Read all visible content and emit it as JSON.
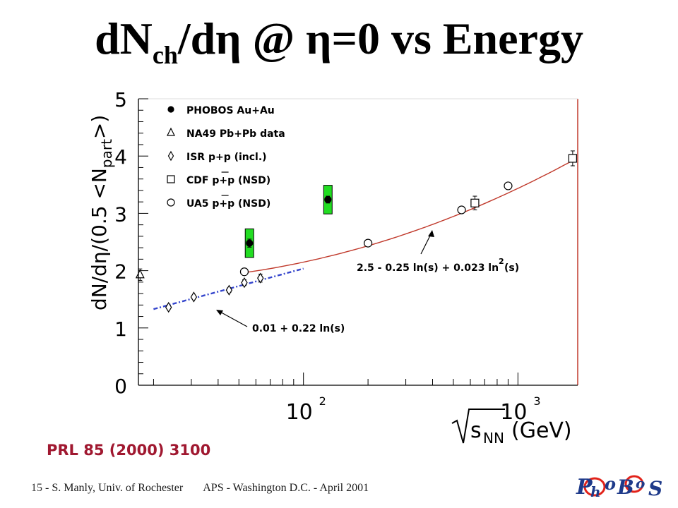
{
  "slide": {
    "title_main": "dN",
    "title_sub": "ch",
    "title_rest": "/dη @ η=0 vs Energy",
    "reference": "PRL 85 (2000) 3100",
    "footer_num": "15",
    "footer_author": " - S. Manly, Univ. of Rochester",
    "footer_conf": "APS - Washington D.C. - April 2001",
    "logo_text": "PHOBOS"
  },
  "chart_data": {
    "type": "scatter",
    "title": "",
    "ylabel_parts": {
      "a": "dN/d",
      "eta": "η",
      "b": "/(0.5 <N",
      "sub": "part",
      "c": ">)"
    },
    "xlabel_parts": {
      "sqrt_s": "s",
      "sub": "NN",
      "unit": "(GeV)"
    },
    "x_scale": "log",
    "xlim": [
      17,
      1900
    ],
    "ylim": [
      0,
      5
    ],
    "y_ticks": [
      "0",
      "1",
      "2",
      "3",
      "4",
      "5"
    ],
    "x_ticks": [
      {
        "value": 100,
        "base": "10",
        "exp": "2"
      },
      {
        "value": 1000,
        "base": "10",
        "exp": "3"
      }
    ],
    "legend_position": "top-left",
    "series": [
      {
        "name": "PHOBOS Au+Au",
        "marker": "filled-circle",
        "color": "#000000",
        "band_color": "#22dd22",
        "points": [
          {
            "x": 56,
            "y": 2.48,
            "err": 0.07,
            "sys": 0.25
          },
          {
            "x": 130,
            "y": 3.24,
            "err": 0.06,
            "sys": 0.25
          }
        ]
      },
      {
        "name": "NA49 Pb+Pb data",
        "marker": "open-triangle",
        "points": [
          {
            "x": 17.3,
            "y": 1.93,
            "err": 0.1
          }
        ]
      },
      {
        "name": "ISR p+p (incl.)",
        "marker": "open-diamond",
        "points": [
          {
            "x": 23.5,
            "y": 1.36,
            "err": 0.03
          },
          {
            "x": 30.8,
            "y": 1.54,
            "err": 0.03
          },
          {
            "x": 45,
            "y": 1.66,
            "err": 0.04
          },
          {
            "x": 53,
            "y": 1.79,
            "err": 0.05
          },
          {
            "x": 63,
            "y": 1.87,
            "err": 0.07
          }
        ]
      },
      {
        "name": "CDF p+p (NSD)",
        "name_bar": "p",
        "marker": "open-square",
        "points": [
          {
            "x": 630,
            "y": 3.18,
            "err": 0.12
          },
          {
            "x": 1800,
            "y": 3.96,
            "err": 0.13
          }
        ]
      },
      {
        "name": "UA5 p+p (NSD)",
        "name_bar": "p",
        "marker": "open-circle",
        "points": [
          {
            "x": 53,
            "y": 1.98,
            "err": 0.06
          },
          {
            "x": 200,
            "y": 2.48,
            "err": 0.05
          },
          {
            "x": 546,
            "y": 3.06,
            "err": 0.04
          },
          {
            "x": 900,
            "y": 3.48,
            "err": 0.03
          }
        ]
      }
    ],
    "fits": [
      {
        "label": "2.5 - 0.25 ln(s) + 0.023 ln",
        "label_sup": "2",
        "label_end": "(s)",
        "a": 2.5,
        "b": -0.25,
        "c": 0.023,
        "color": "#c0392b",
        "x_range": [
          53,
          1800
        ]
      },
      {
        "label": "0.01 + 0.22 ln(s)",
        "a": 0.01,
        "b": 0.22,
        "c": 0,
        "color": "#3344cc",
        "dash": "6,3,2,3",
        "x_range": [
          20,
          100
        ]
      }
    ]
  }
}
